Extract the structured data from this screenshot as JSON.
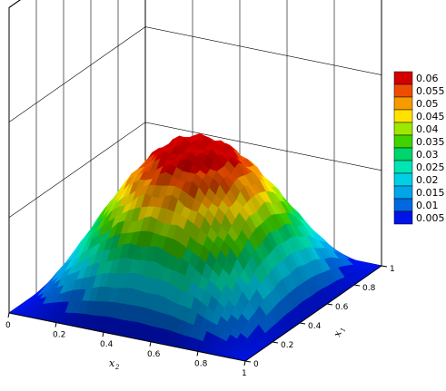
{
  "chart_data": {
    "type": "surface3d",
    "description_function": "hump",
    "x1": {
      "label": "x",
      "subscript": "1",
      "range": [
        0,
        1
      ],
      "ticks": [
        "0",
        "0.2",
        "0.4",
        "0.6",
        "0.8",
        "1"
      ]
    },
    "x2": {
      "label": "x",
      "subscript": "2",
      "range": [
        0,
        1
      ],
      "ticks": [
        "0",
        "0.2",
        "0.4",
        "0.6",
        "0.8",
        "1"
      ]
    },
    "z": {
      "range": [
        0,
        0.0625
      ],
      "peak": 0.0625,
      "peak_location": [
        0.5,
        0.5
      ]
    },
    "legend": {
      "placement": "right",
      "levels": [
        {
          "label": "0.06",
          "color": "#d40000"
        },
        {
          "label": "0.055",
          "color": "#ec4d00"
        },
        {
          "label": "0.05",
          "color": "#f79a00"
        },
        {
          "label": "0.045",
          "color": "#ffe200"
        },
        {
          "label": "0.04",
          "color": "#9ee800"
        },
        {
          "label": "0.035",
          "color": "#3fd400"
        },
        {
          "label": "0.03",
          "color": "#00d46a"
        },
        {
          "label": "0.025",
          "color": "#00e5b2"
        },
        {
          "label": "0.02",
          "color": "#00d0e6"
        },
        {
          "label": "0.015",
          "color": "#00a6e8"
        },
        {
          "label": "0.01",
          "color": "#0069e0"
        },
        {
          "label": "0.005",
          "color": "#0014e6"
        }
      ]
    },
    "grid": true
  }
}
